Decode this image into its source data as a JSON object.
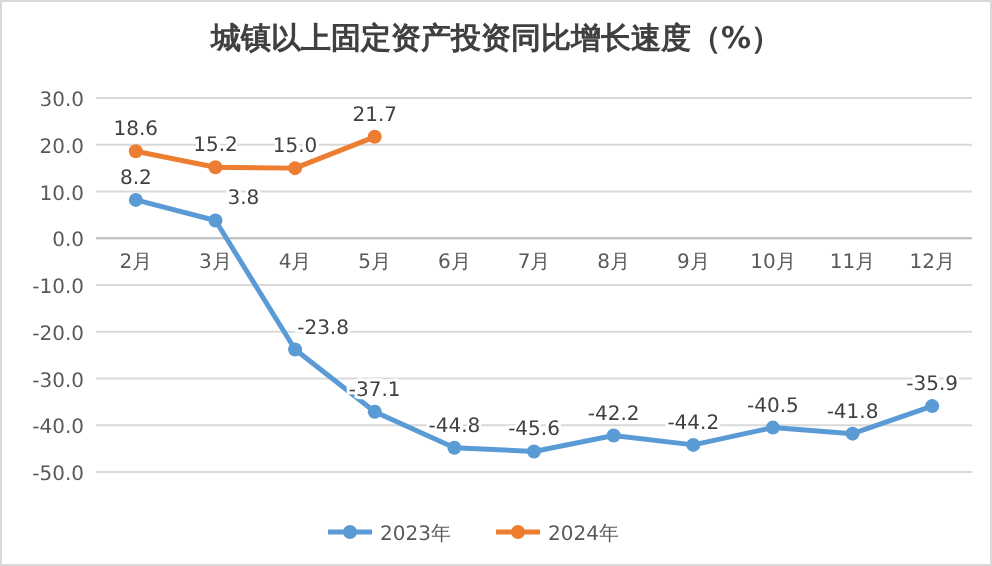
{
  "chart_data": {
    "type": "line",
    "title": "城镇以上固定资产投资同比增长速度（%）",
    "categories": [
      "2月",
      "3月",
      "4月",
      "5月",
      "6月",
      "7月",
      "8月",
      "9月",
      "10月",
      "11月",
      "12月"
    ],
    "series": [
      {
        "name": "2023年",
        "color": "#5b9bd5",
        "values": [
          8.2,
          3.8,
          -23.8,
          -37.1,
          -44.8,
          -45.6,
          -42.2,
          -44.2,
          -40.5,
          -41.8,
          -35.9
        ]
      },
      {
        "name": "2024年",
        "color": "#ed7d31",
        "values": [
          18.6,
          15.2,
          15.0,
          21.7,
          null,
          null,
          null,
          null,
          null,
          null,
          null
        ],
        "value_labels": [
          "18.6",
          "15.2",
          "15.0",
          "21.7",
          null,
          null,
          null,
          null,
          null,
          null,
          null
        ]
      }
    ],
    "ylim": [
      -50,
      30
    ],
    "yticks": [
      {
        "value": 30,
        "label": "30.0"
      },
      {
        "value": 20,
        "label": "20.0"
      },
      {
        "value": 10,
        "label": "10.0"
      },
      {
        "value": 0,
        "label": "0.0"
      },
      {
        "value": -10,
        "label": "-10.0"
      },
      {
        "value": -20,
        "label": "-20.0"
      },
      {
        "value": -30,
        "label": "-30.0"
      },
      {
        "value": -40,
        "label": "-40.0"
      },
      {
        "value": -50,
        "label": "-50.0"
      }
    ],
    "grid": "y",
    "legend": "bottom",
    "marker": "circle",
    "data_labels": true
  }
}
